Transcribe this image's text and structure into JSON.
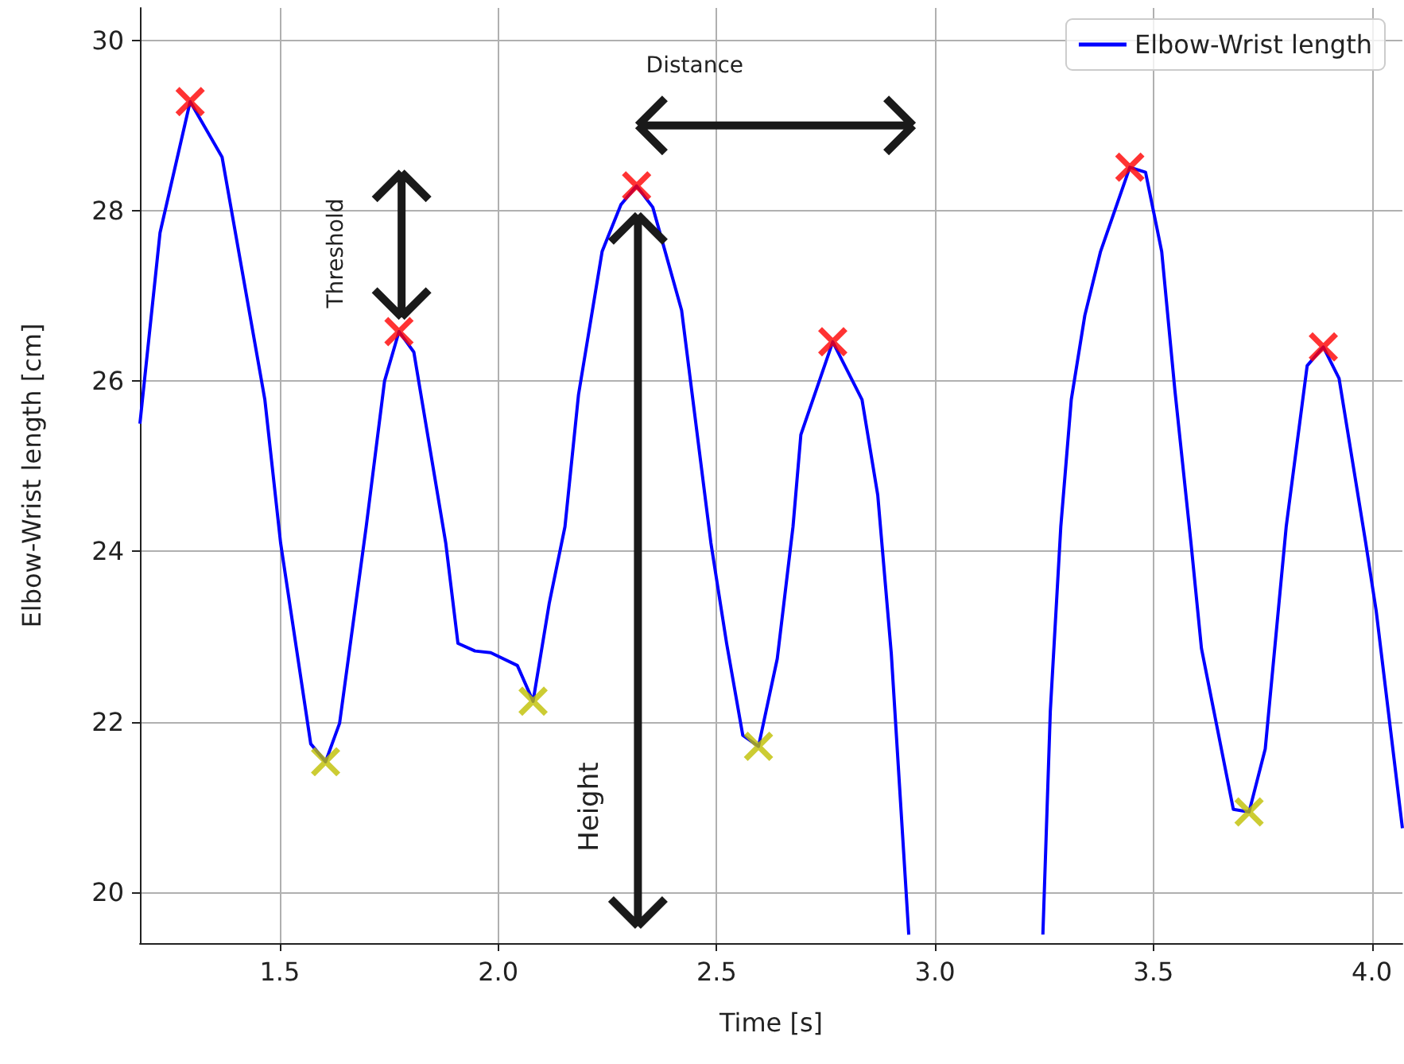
{
  "chart_data": {
    "type": "line",
    "xlabel": "Time [s]",
    "ylabel": "Elbow-Wrist length [cm]",
    "xlim": [
      1.18,
      4.07
    ],
    "ylim": [
      19.4,
      30.38
    ],
    "xticks": [
      {
        "value": 1.5,
        "label": "1.5"
      },
      {
        "value": 2,
        "label": "2.0"
      },
      {
        "value": 2.5,
        "label": "2.5"
      },
      {
        "value": 3,
        "label": "3.0"
      },
      {
        "value": 3.5,
        "label": "3.5"
      },
      {
        "value": 4,
        "label": "4.0"
      }
    ],
    "yticks": [
      20,
      22,
      24,
      26,
      28,
      30
    ],
    "grid": true,
    "legend": "top right",
    "marker": "none",
    "line_style": "solid",
    "annotations": [
      "Distance",
      "Threshold",
      "Height"
    ],
    "series": [
      {
        "name": "Elbow-Wrist length",
        "color": "#0000ff",
        "x": [
          1.18,
          1.226,
          1.295,
          1.368,
          1.466,
          1.502,
          1.571,
          1.605,
          1.637,
          1.698,
          1.74,
          1.773,
          1.807,
          1.88,
          1.908,
          1.947,
          1.983,
          2.044,
          2.08,
          2.117,
          2.153,
          2.184,
          2.238,
          2.281,
          2.317,
          2.354,
          2.42,
          2.487,
          2.523,
          2.56,
          2.596,
          2.639,
          2.675,
          2.693,
          2.766,
          2.833,
          2.869,
          2.9,
          2.94,
          3.09,
          3.247,
          3.264,
          3.288,
          3.312,
          3.343,
          3.379,
          3.446,
          3.482,
          3.519,
          3.549,
          3.586,
          3.61,
          3.683,
          3.719,
          3.756,
          3.804,
          3.852,
          3.889,
          3.925,
          3.986,
          4.01,
          4.07
        ],
        "values": [
          25.5,
          27.74,
          29.28,
          28.63,
          25.78,
          24.1,
          21.74,
          21.53,
          21.98,
          24.29,
          26.0,
          26.58,
          26.34,
          24.1,
          22.92,
          22.83,
          22.81,
          22.66,
          22.24,
          23.39,
          24.29,
          25.84,
          27.52,
          28.07,
          28.29,
          28.04,
          26.83,
          24.1,
          22.92,
          21.84,
          21.71,
          22.74,
          24.29,
          25.37,
          26.46,
          25.78,
          24.66,
          22.8,
          19.5,
          null,
          19.5,
          22.12,
          24.29,
          25.78,
          26.77,
          27.52,
          28.51,
          28.45,
          27.52,
          25.9,
          24.1,
          22.86,
          20.97,
          20.94,
          21.68,
          24.29,
          26.18,
          26.4,
          26.03,
          24.1,
          23.3,
          20.75
        ]
      },
      {
        "type": "scatter",
        "marker": "cross",
        "color": "#ff0000",
        "x": [
          1.295,
          1.773,
          2.317,
          2.766,
          3.446,
          3.889
        ],
        "values": [
          29.28,
          26.58,
          28.29,
          26.46,
          28.51,
          26.4
        ]
      },
      {
        "type": "scatter",
        "marker": "cross",
        "color": "#bfbf00",
        "x": [
          1.605,
          2.08,
          2.596,
          3.719
        ],
        "values": [
          21.53,
          22.24,
          21.71,
          20.94
        ]
      }
    ]
  }
}
